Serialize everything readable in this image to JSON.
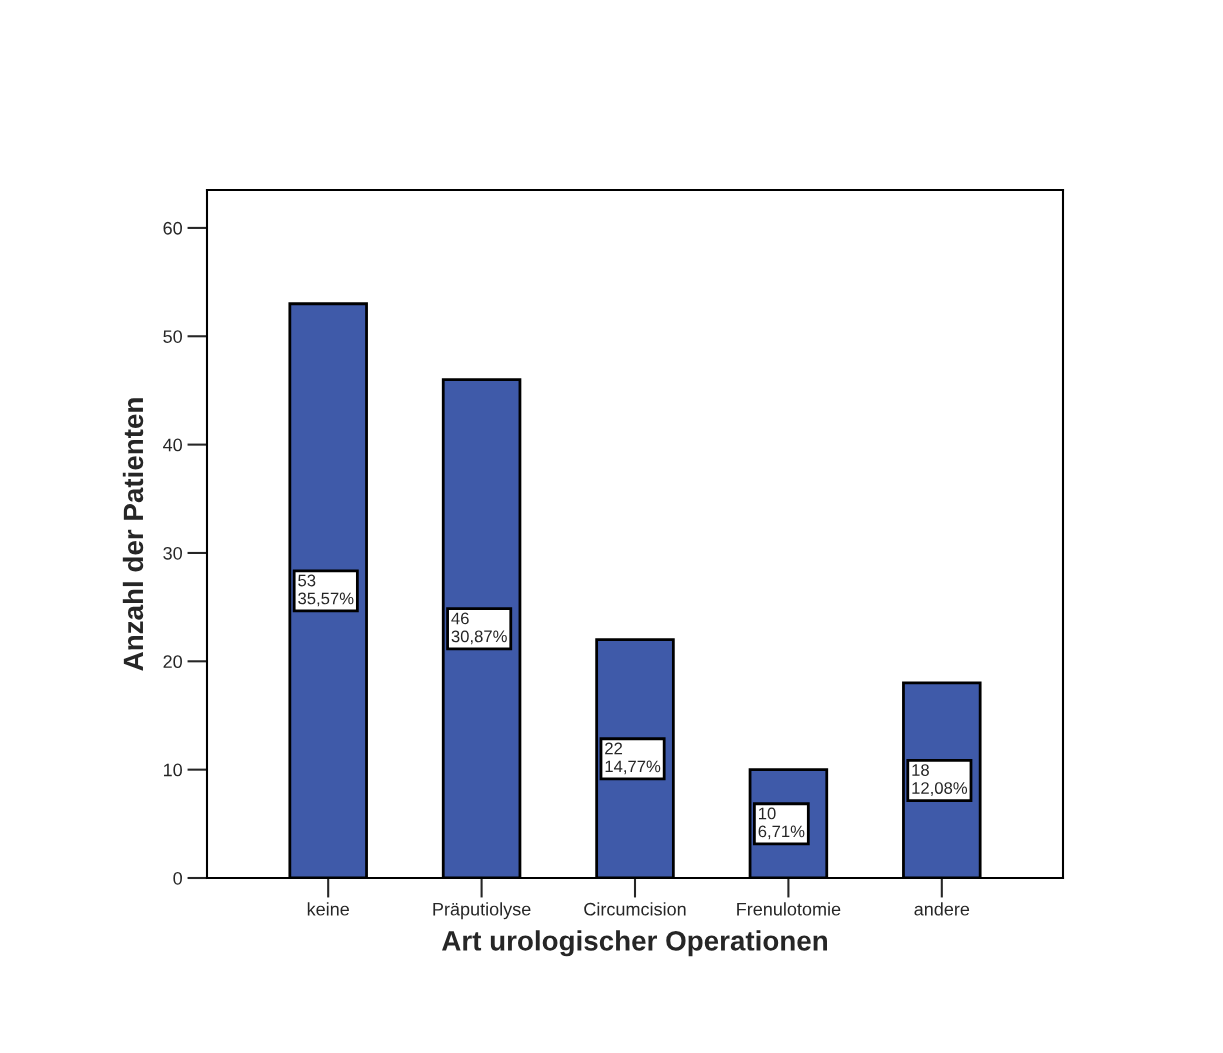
{
  "chart_data": {
    "type": "bar",
    "xlabel": "Art urologischer Operationen",
    "ylabel": "Anzahl der Patienten",
    "categories": [
      "keine",
      "Präputiolyse",
      "Circumcision",
      "Frenulotomie",
      "andere"
    ],
    "values": [
      53,
      46,
      22,
      10,
      18
    ],
    "value_labels": [
      "53\n35,57%",
      "46\n30,87%",
      "22\n14,77%",
      "10\n6,71%",
      "18\n12,08%"
    ],
    "color": "#3f5aa9",
    "ylim": [
      0,
      63.5
    ],
    "yticks": [
      0,
      10,
      20,
      30,
      40,
      50,
      60
    ],
    "grid": false,
    "legend": false
  }
}
